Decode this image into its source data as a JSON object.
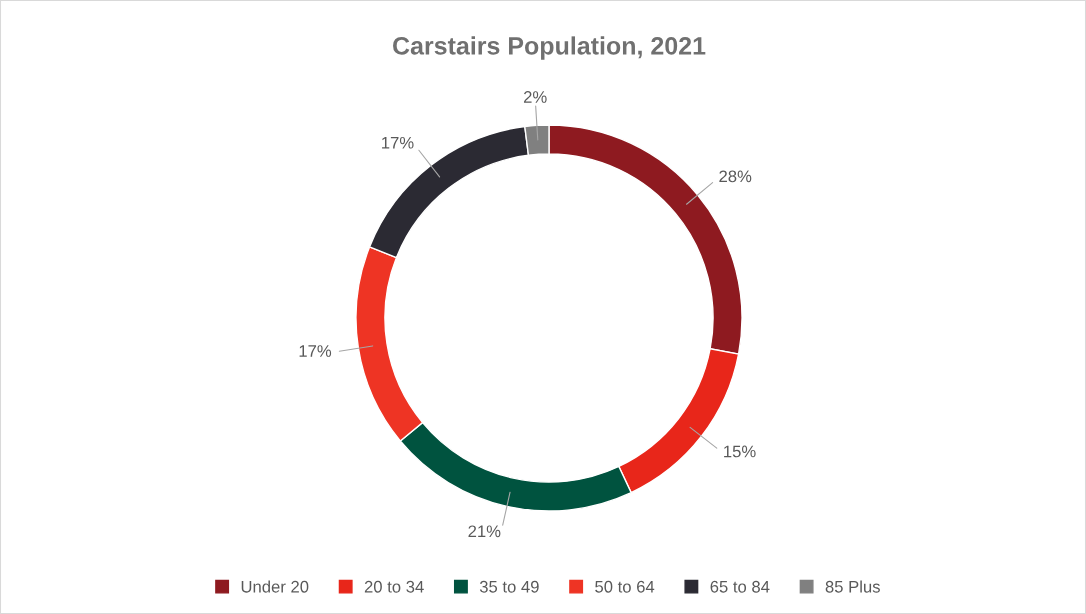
{
  "chart_data": {
    "type": "donut",
    "title": "Carstairs Population, 2021",
    "categories": [
      "Under 20",
      "20 to 34",
      "35 to 49",
      "50 to 64",
      "65 to 84",
      "85 Plus"
    ],
    "values": [
      28,
      15,
      21,
      17,
      17,
      2
    ],
    "colors": [
      "#8e1a20",
      "#e8261a",
      "#00533f",
      "#ee3424",
      "#2b2a33",
      "#808080"
    ],
    "value_labels": [
      "28%",
      "15%",
      "21%",
      "17%",
      "17%",
      "2%"
    ],
    "legend": "bottom"
  }
}
